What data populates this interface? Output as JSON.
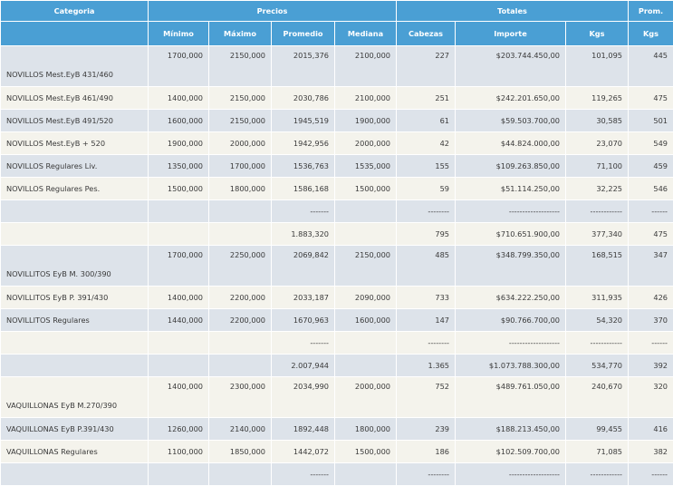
{
  "header": {
    "top": {
      "categoria": "Categoria",
      "precios": "Precios",
      "totales": "Totales",
      "prom": "Prom."
    },
    "sub": {
      "minimo": "Mínimo",
      "maximo": "Máximo",
      "promedio": "Promedio",
      "mediana": "Mediana",
      "cabezas": "Cabezas",
      "importe": "Importe",
      "kgs": "Kgs",
      "prom_kgs": "Kgs"
    }
  },
  "rows": [
    {
      "cat": "NOVILLOS Mest.EyB 431/460",
      "min": "1700,000",
      "max": "2150,000",
      "prom": "2015,376",
      "med": "2100,000",
      "cab": "227",
      "imp": "$203.744.450,00",
      "kgs": "101,095",
      "pk": "445"
    },
    {
      "cat": "NOVILLOS Mest.EyB 461/490",
      "min": "1400,000",
      "max": "2150,000",
      "prom": "2030,786",
      "med": "2100,000",
      "cab": "251",
      "imp": "$242.201.650,00",
      "kgs": "119,265",
      "pk": "475"
    },
    {
      "cat": "NOVILLOS Mest.EyB 491/520",
      "min": "1600,000",
      "max": "2150,000",
      "prom": "1945,519",
      "med": "1900,000",
      "cab": "61",
      "imp": "$59.503.700,00",
      "kgs": "30,585",
      "pk": "501"
    },
    {
      "cat": "NOVILLOS Mest.EyB + 520",
      "min": "1900,000",
      "max": "2000,000",
      "prom": "1942,956",
      "med": "2000,000",
      "cab": "42",
      "imp": "$44.824.000,00",
      "kgs": "23,070",
      "pk": "549"
    },
    {
      "cat": "NOVILLOS Regulares Liv.",
      "min": "1350,000",
      "max": "1700,000",
      "prom": "1536,763",
      "med": "1535,000",
      "cab": "155",
      "imp": "$109.263.850,00",
      "kgs": "71,100",
      "pk": "459"
    },
    {
      "cat": "NOVILLOS Regulares Pes.",
      "min": "1500,000",
      "max": "1800,000",
      "prom": "1586,168",
      "med": "1500,000",
      "cab": "59",
      "imp": "$51.114.250,00",
      "kgs": "32,225",
      "pk": "546"
    },
    {
      "cat": "",
      "min": "",
      "max": "",
      "prom": "-------",
      "med": "",
      "cab": "--------",
      "imp": "-------------------",
      "kgs": "------------",
      "pk": "------"
    },
    {
      "cat": "",
      "min": "",
      "max": "",
      "prom": "1.883,320",
      "med": "",
      "cab": "795",
      "imp": "$710.651.900,00",
      "kgs": "377,340",
      "pk": "475"
    },
    {
      "cat": "NOVILLITOS EyB M. 300/390",
      "min": "1700,000",
      "max": "2250,000",
      "prom": "2069,842",
      "med": "2150,000",
      "cab": "485",
      "imp": "$348.799.350,00",
      "kgs": "168,515",
      "pk": "347"
    },
    {
      "cat": "NOVILLITOS EyB P. 391/430",
      "min": "1400,000",
      "max": "2200,000",
      "prom": "2033,187",
      "med": "2090,000",
      "cab": "733",
      "imp": "$634.222.250,00",
      "kgs": "311,935",
      "pk": "426"
    },
    {
      "cat": "NOVILLITOS Regulares",
      "min": "1440,000",
      "max": "2200,000",
      "prom": "1670,963",
      "med": "1600,000",
      "cab": "147",
      "imp": "$90.766.700,00",
      "kgs": "54,320",
      "pk": "370"
    },
    {
      "cat": "",
      "min": "",
      "max": "",
      "prom": "-------",
      "med": "",
      "cab": "--------",
      "imp": "-------------------",
      "kgs": "------------",
      "pk": "------"
    },
    {
      "cat": "",
      "min": "",
      "max": "",
      "prom": "2.007,944",
      "med": "",
      "cab": "1.365",
      "imp": "$1.073.788.300,00",
      "kgs": "534,770",
      "pk": "392"
    },
    {
      "cat": "VAQUILLONAS EyB M.270/390",
      "min": "1400,000",
      "max": "2300,000",
      "prom": "2034,990",
      "med": "2000,000",
      "cab": "752",
      "imp": "$489.761.050,00",
      "kgs": "240,670",
      "pk": "320"
    },
    {
      "cat": "VAQUILLONAS EyB P.391/430",
      "min": "1260,000",
      "max": "2140,000",
      "prom": "1892,448",
      "med": "1800,000",
      "cab": "239",
      "imp": "$188.213.450,00",
      "kgs": "99,455",
      "pk": "416"
    },
    {
      "cat": "VAQUILLONAS Regulares",
      "min": "1100,000",
      "max": "1850,000",
      "prom": "1442,072",
      "med": "1500,000",
      "cab": "186",
      "imp": "$102.509.700,00",
      "kgs": "71,085",
      "pk": "382"
    },
    {
      "cat": "",
      "min": "",
      "max": "",
      "prom": "-------",
      "med": "",
      "cab": "--------",
      "imp": "-------------------",
      "kgs": "------------",
      "pk": "------"
    }
  ]
}
